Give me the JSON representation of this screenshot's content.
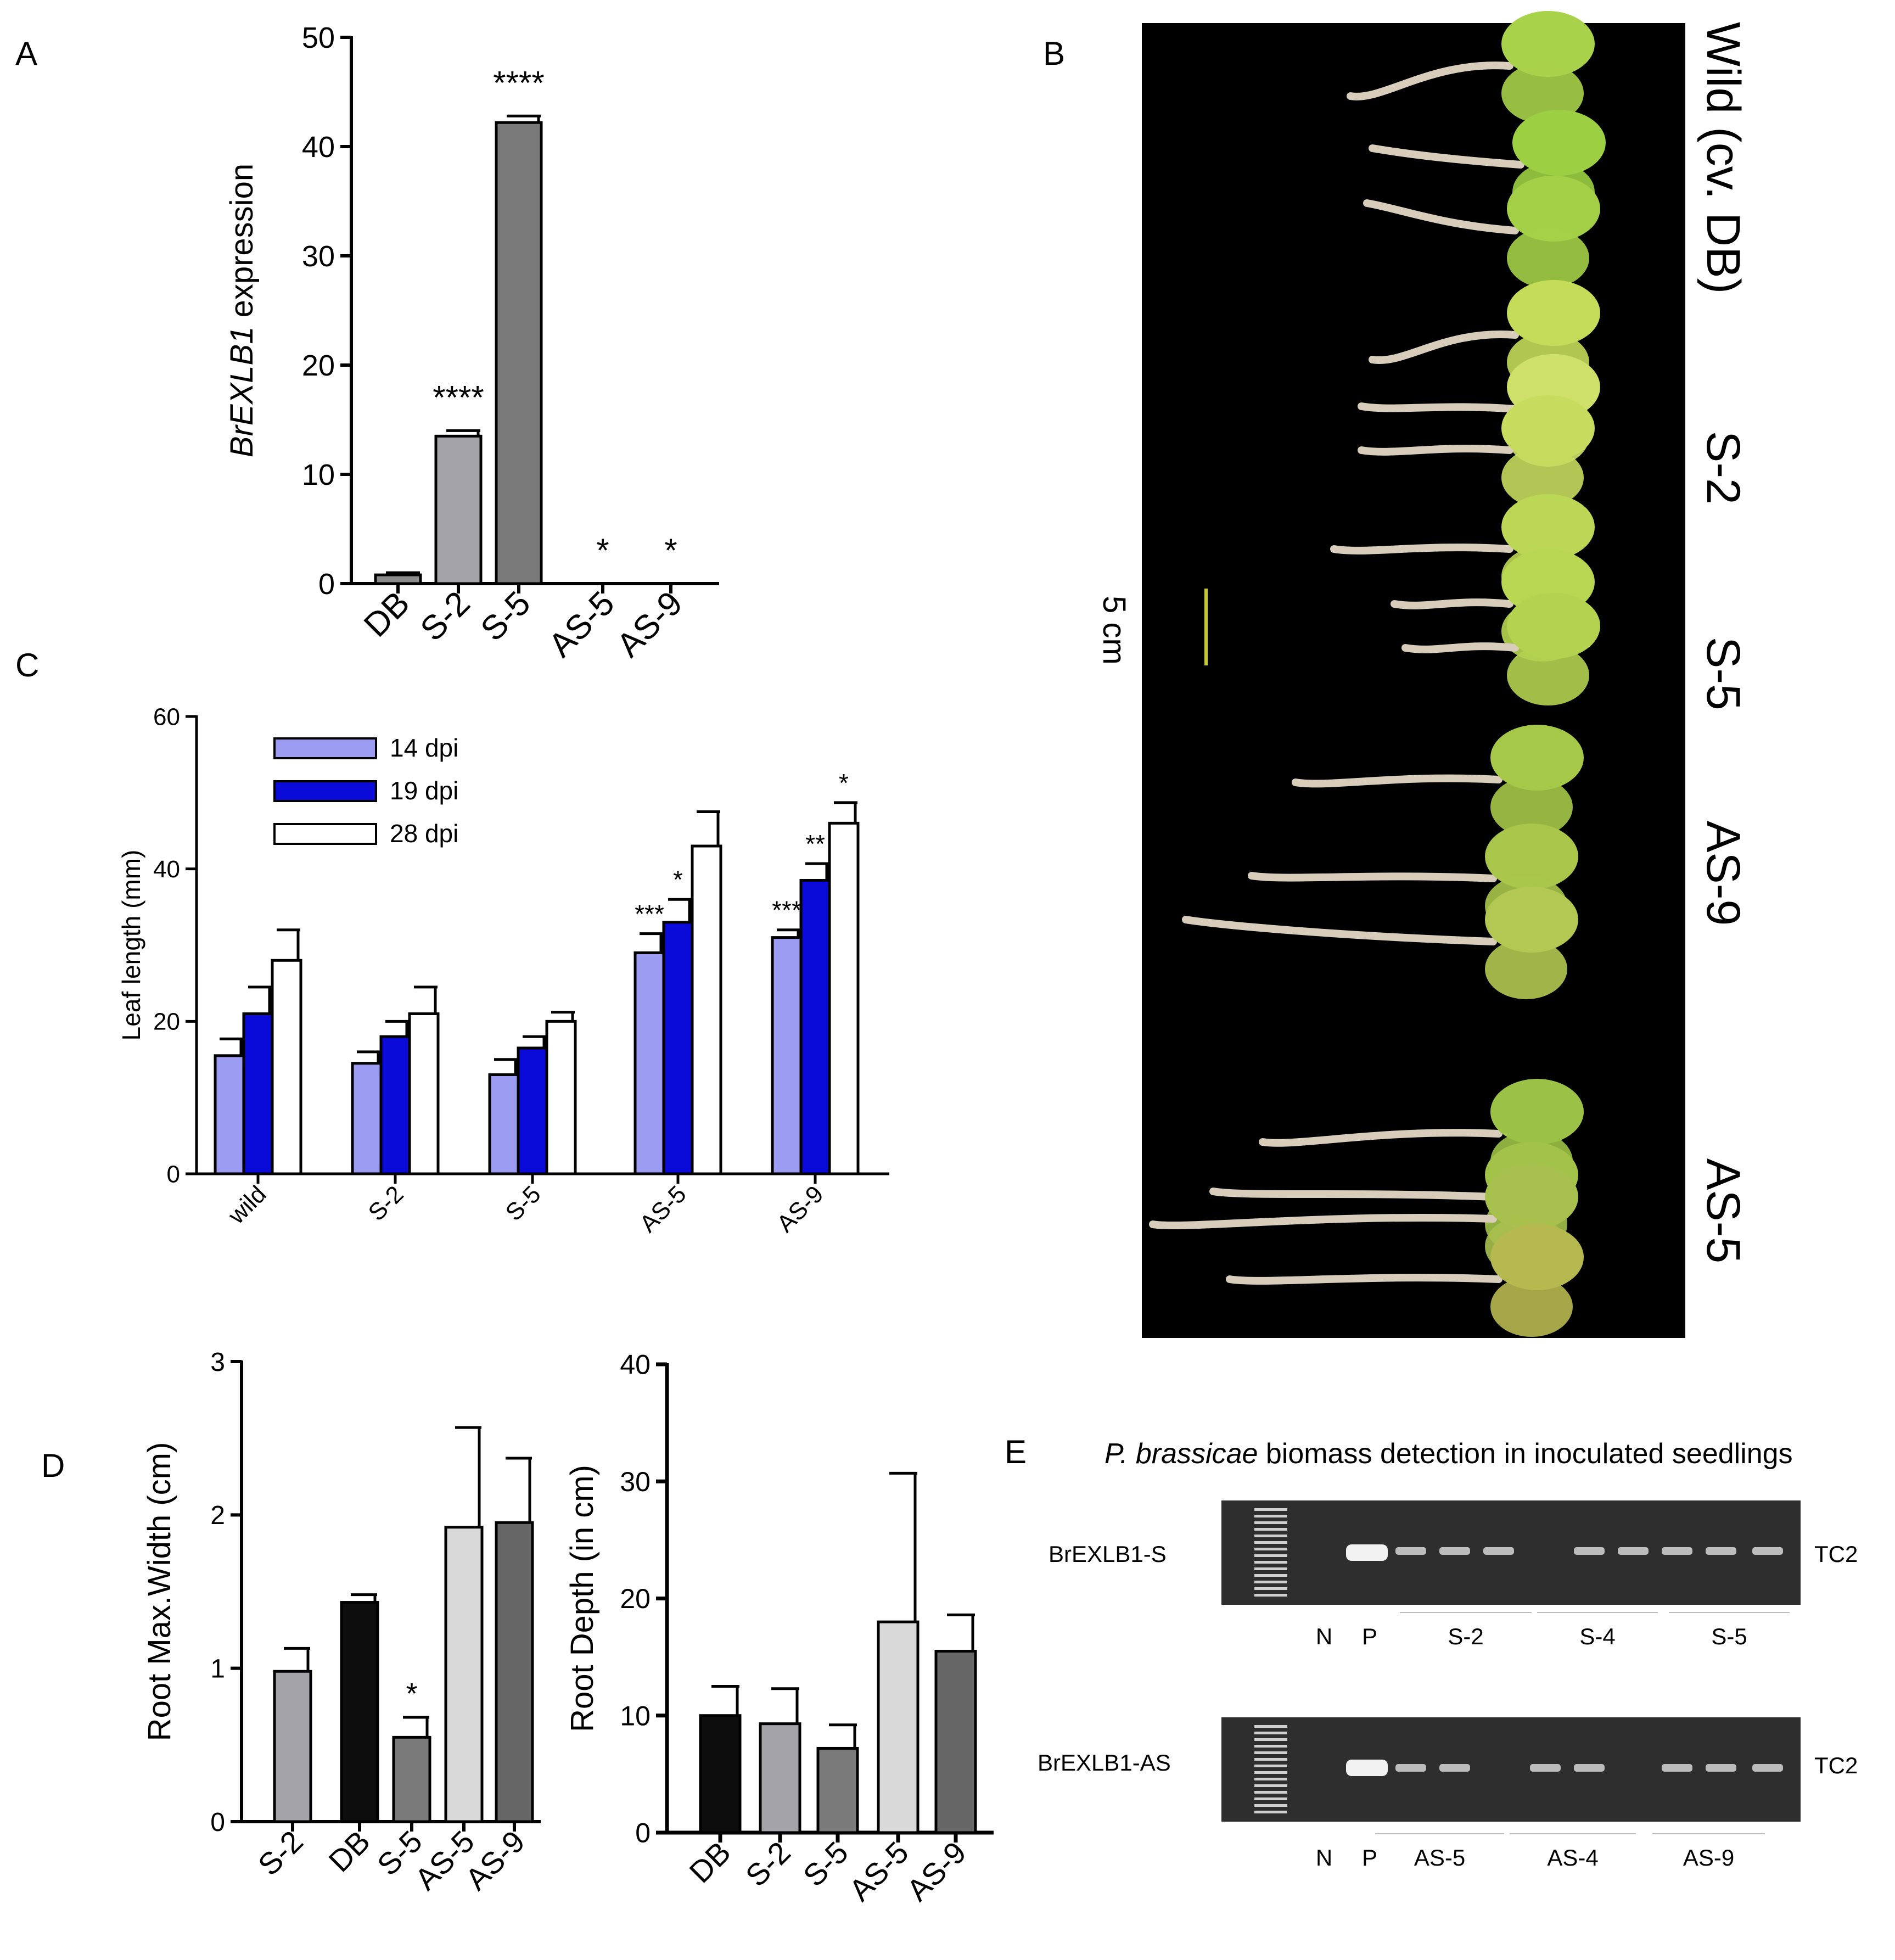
{
  "panel_labels": {
    "A": "A",
    "B": "B",
    "C": "C",
    "D": "D",
    "E": "E"
  },
  "chart_data": [
    {
      "id": "A",
      "type": "bar",
      "ylabel_italic": "BrEXLB1",
      "ylabel_rest": " expression",
      "ylim": [
        0,
        50
      ],
      "yticks": [
        "0",
        "10",
        "20",
        "30",
        "40",
        "50"
      ],
      "categories": [
        "DB",
        "S-2",
        "S-5",
        "AS-5",
        "AS-9"
      ],
      "values": [
        0.8,
        13.5,
        42.2,
        0,
        0
      ],
      "errors": [
        0.2,
        0.5,
        0.6,
        0,
        0
      ],
      "annotations": [
        "",
        "****",
        "****",
        "*",
        "*"
      ],
      "colors": [
        "#8c8c8c",
        "#a3a3a8",
        "#7a7a7a",
        "#ffffff",
        "#ffffff"
      ]
    },
    {
      "id": "C",
      "type": "bar",
      "ylabel": "Leaf length (mm)",
      "ylim": [
        0,
        60
      ],
      "yticks": [
        "0",
        "20",
        "40",
        "60"
      ],
      "categories": [
        "wild",
        "S-2",
        "S-5",
        "AS-5",
        "AS-9"
      ],
      "legend_position": "top-left",
      "series": [
        {
          "name": "14 dpi",
          "color": "#9c9cf2",
          "values": [
            15.5,
            14.5,
            13.0,
            29.0,
            31.0
          ],
          "errors": [
            2.2,
            1.5,
            2.0,
            2.5,
            1.0
          ],
          "annotations": [
            "",
            "",
            "",
            "***",
            "***"
          ]
        },
        {
          "name": "19 dpi",
          "color": "#0a0ad9",
          "values": [
            21.0,
            18.0,
            16.5,
            33.0,
            38.5
          ],
          "errors": [
            3.5,
            2.0,
            1.5,
            3.0,
            2.2
          ],
          "annotations": [
            "",
            "",
            "",
            "*",
            "**"
          ]
        },
        {
          "name": "28 dpi",
          "color": "#ffffff",
          "values": [
            28.0,
            21.0,
            20.0,
            43.0,
            46.0
          ],
          "errors": [
            4.0,
            3.5,
            1.2,
            4.5,
            2.7
          ],
          "annotations": [
            "",
            "",
            "",
            "",
            "*"
          ]
        }
      ]
    },
    {
      "id": "D1",
      "type": "bar",
      "ylabel": "Root Max.Width (cm)",
      "ylim": [
        0,
        3
      ],
      "yticks": [
        "0",
        "1",
        "2",
        "3"
      ],
      "categories": [
        "S-2",
        "DB",
        "S-5",
        "AS-5",
        "AS-9"
      ],
      "values": [
        0.98,
        1.43,
        0.55,
        1.92,
        1.95
      ],
      "errors": [
        0.15,
        0.05,
        0.13,
        0.65,
        0.42
      ],
      "annotations": [
        "",
        "",
        "*",
        "",
        ""
      ],
      "colors": [
        "#a3a3a8",
        "#0d0d0d",
        "#7a7a7a",
        "#d9d9d9",
        "#666666"
      ]
    },
    {
      "id": "D2",
      "type": "bar",
      "ylabel": "Root Depth (in cm)",
      "ylim": [
        0,
        40
      ],
      "yticks": [
        "0",
        "10",
        "20",
        "30",
        "40"
      ],
      "categories": [
        "DB",
        "S-2",
        "S-5",
        "AS-5",
        "AS-9"
      ],
      "values": [
        10.0,
        9.3,
        7.2,
        18.0,
        15.5
      ],
      "errors": [
        2.5,
        3.0,
        2.0,
        12.7,
        3.1
      ],
      "annotations": [
        "",
        "",
        "",
        "",
        ""
      ],
      "colors": [
        "#0d0d0d",
        "#a3a3a8",
        "#7a7a7a",
        "#d9d9d9",
        "#666666"
      ]
    }
  ],
  "photo": {
    "row_labels": [
      "Wild (cv. DB)",
      "S-2",
      "S-5",
      "AS-9",
      "AS-5"
    ],
    "scale_label": "5 cm",
    "scale_color": "#c8c832",
    "background_color": "#000000"
  },
  "gel": {
    "title_italic": "P. brassicae",
    "title_rest": " biomass detection in inoculated seedlings",
    "top_label": "BrEXLB1-S",
    "bottom_label": "BrEXLB1-AS",
    "marker_label": "TC2",
    "top_lanes": [
      "N",
      "P",
      "S-2",
      "S-4",
      "S-5"
    ],
    "bottom_lanes": [
      "N",
      "P",
      "AS-5",
      "AS-4",
      "AS-9"
    ]
  }
}
